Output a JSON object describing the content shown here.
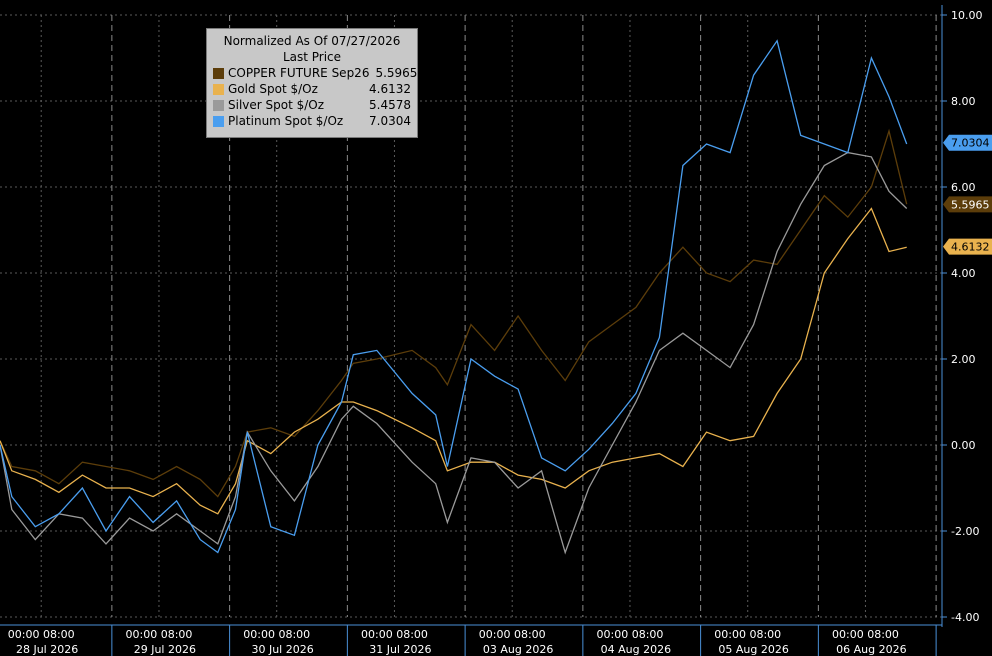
{
  "legend": {
    "title": "Normalized As Of 07/27/2026",
    "subtitle": "Last Price"
  },
  "colors": {
    "background": "#000000",
    "axis": "#4a90d9",
    "grid": "#5a5a5a",
    "text": "#ffffff"
  },
  "chart_data": {
    "type": "line",
    "xlim": [
      0,
      8
    ],
    "ylim": [
      -4,
      10
    ],
    "ylabel": "",
    "xlabel": "",
    "grid": true,
    "legend_position": "top-left",
    "yticks": [
      "10.00",
      "8.00",
      "6.00",
      "4.00",
      "2.00",
      "0.00",
      "-2.00",
      "-4.00"
    ],
    "ytick_values": [
      10,
      8,
      6,
      4,
      2,
      0,
      -2,
      -4
    ],
    "session_ticks": [
      {
        "pos": 0.35,
        "label": "00:00 08:00"
      },
      {
        "pos": 1.35,
        "label": "00:00 08:00"
      },
      {
        "pos": 2.35,
        "label": "00:00 08:00"
      },
      {
        "pos": 3.35,
        "label": "00:00 08:00"
      },
      {
        "pos": 4.35,
        "label": "00:00 08:00"
      },
      {
        "pos": 5.35,
        "label": "00:00 08:00"
      },
      {
        "pos": 6.35,
        "label": "00:00 08:00"
      },
      {
        "pos": 7.35,
        "label": "00:00 08:00"
      }
    ],
    "date_labels": [
      {
        "pos": 0.4,
        "label": "28 Jul 2026"
      },
      {
        "pos": 1.4,
        "label": "29 Jul 2026"
      },
      {
        "pos": 2.4,
        "label": "30 Jul 2026"
      },
      {
        "pos": 3.4,
        "label": "31 Jul 2026"
      },
      {
        "pos": 4.4,
        "label": "03 Aug 2026"
      },
      {
        "pos": 5.4,
        "label": "04 Aug 2026"
      },
      {
        "pos": 6.4,
        "label": "05 Aug 2026"
      },
      {
        "pos": 7.4,
        "label": "06 Aug 2026"
      }
    ],
    "series": [
      {
        "name": "COPPER FUTURE Sep26",
        "last": "5.5965",
        "color": "#5c3d0a",
        "x": [
          0,
          0.1,
          0.3,
          0.5,
          0.7,
          0.9,
          1.1,
          1.3,
          1.5,
          1.7,
          1.85,
          2.0,
          2.1,
          2.3,
          2.5,
          2.7,
          2.9,
          3.0,
          3.2,
          3.5,
          3.7,
          3.8,
          4.0,
          4.2,
          4.4,
          4.6,
          4.8,
          5.0,
          5.2,
          5.4,
          5.6,
          5.8,
          6.0,
          6.2,
          6.4,
          6.6,
          6.8,
          7.0,
          7.2,
          7.4,
          7.55,
          7.7
        ],
        "values": [
          0.1,
          -0.5,
          -0.6,
          -0.9,
          -0.4,
          -0.5,
          -0.6,
          -0.8,
          -0.5,
          -0.8,
          -1.2,
          -0.5,
          0.3,
          0.4,
          0.2,
          0.8,
          1.5,
          1.9,
          2.0,
          2.2,
          1.8,
          1.4,
          2.8,
          2.2,
          3.0,
          2.2,
          1.5,
          2.4,
          2.8,
          3.2,
          4.0,
          4.6,
          4.0,
          3.8,
          4.3,
          4.2,
          5.0,
          5.8,
          5.3,
          6.0,
          7.3,
          5.6
        ]
      },
      {
        "name": "Gold Spot $/Oz",
        "last": "4.6132",
        "color": "#e9b24e",
        "x": [
          0,
          0.1,
          0.3,
          0.5,
          0.7,
          0.9,
          1.1,
          1.3,
          1.5,
          1.7,
          1.85,
          2.0,
          2.1,
          2.3,
          2.5,
          2.7,
          2.9,
          3.0,
          3.2,
          3.5,
          3.7,
          3.8,
          4.0,
          4.2,
          4.4,
          4.6,
          4.8,
          5.0,
          5.2,
          5.4,
          5.6,
          5.8,
          6.0,
          6.2,
          6.4,
          6.6,
          6.8,
          7.0,
          7.2,
          7.4,
          7.55,
          7.7
        ],
        "values": [
          0.1,
          -0.6,
          -0.8,
          -1.1,
          -0.7,
          -1.0,
          -1.0,
          -1.2,
          -0.9,
          -1.4,
          -1.6,
          -0.9,
          0.1,
          -0.2,
          0.3,
          0.6,
          1.0,
          1.0,
          0.8,
          0.4,
          0.1,
          -0.6,
          -0.4,
          -0.4,
          -0.7,
          -0.8,
          -1.0,
          -0.6,
          -0.4,
          -0.3,
          -0.2,
          -0.5,
          0.3,
          0.1,
          0.2,
          1.2,
          2.0,
          4.0,
          4.8,
          5.5,
          4.5,
          4.6
        ]
      },
      {
        "name": "Silver Spot $/Oz",
        "last": "5.4578",
        "color": "#9a9a9a",
        "x": [
          0,
          0.1,
          0.3,
          0.5,
          0.7,
          0.9,
          1.1,
          1.3,
          1.5,
          1.7,
          1.85,
          2.0,
          2.1,
          2.3,
          2.5,
          2.7,
          2.9,
          3.0,
          3.2,
          3.5,
          3.7,
          3.8,
          4.0,
          4.2,
          4.4,
          4.6,
          4.8,
          5.0,
          5.2,
          5.4,
          5.6,
          5.8,
          6.0,
          6.2,
          6.4,
          6.6,
          6.8,
          7.0,
          7.2,
          7.4,
          7.55,
          7.7
        ],
        "values": [
          0.0,
          -1.5,
          -2.2,
          -1.6,
          -1.7,
          -2.3,
          -1.7,
          -2.0,
          -1.6,
          -2.0,
          -2.3,
          -1.2,
          0.3,
          -0.6,
          -1.3,
          -0.5,
          0.6,
          0.9,
          0.5,
          -0.4,
          -0.9,
          -1.8,
          -0.3,
          -0.4,
          -1.0,
          -0.6,
          -2.5,
          -1.0,
          0.0,
          1.0,
          2.2,
          2.6,
          2.2,
          1.8,
          2.8,
          4.5,
          5.6,
          6.5,
          6.8,
          6.7,
          5.9,
          5.5
        ]
      },
      {
        "name": "Platinum Spot $/Oz",
        "last": "7.0304",
        "color": "#4a9eef",
        "x": [
          0,
          0.1,
          0.3,
          0.5,
          0.7,
          0.9,
          1.1,
          1.3,
          1.5,
          1.7,
          1.85,
          2.0,
          2.1,
          2.3,
          2.5,
          2.7,
          2.9,
          3.0,
          3.2,
          3.5,
          3.7,
          3.8,
          4.0,
          4.2,
          4.4,
          4.6,
          4.8,
          5.0,
          5.2,
          5.4,
          5.6,
          5.8,
          6.0,
          6.2,
          6.4,
          6.6,
          6.8,
          7.0,
          7.2,
          7.4,
          7.55,
          7.7
        ],
        "values": [
          0.0,
          -1.2,
          -1.9,
          -1.6,
          -1.0,
          -2.0,
          -1.2,
          -1.8,
          -1.3,
          -2.2,
          -2.5,
          -1.5,
          0.3,
          -1.9,
          -2.1,
          0.0,
          1.0,
          2.1,
          2.2,
          1.2,
          0.7,
          -0.5,
          2.0,
          1.6,
          1.3,
          -0.3,
          -0.6,
          -0.1,
          0.5,
          1.2,
          2.5,
          6.5,
          7.0,
          6.8,
          8.6,
          9.4,
          7.2,
          7.0,
          6.8,
          9.0,
          8.1,
          7.0
        ]
      }
    ]
  }
}
